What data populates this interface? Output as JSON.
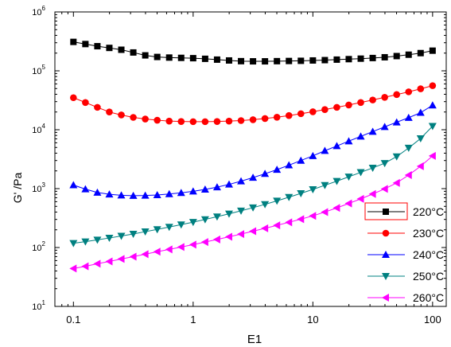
{
  "chart_data": {
    "type": "scatter",
    "xlabel": "E1",
    "ylabel": "G' /Pa",
    "x_scale": "log",
    "y_scale": "log",
    "xlim": [
      0.07,
      130
    ],
    "ylim": [
      10,
      1000000
    ],
    "x_ticks": [
      {
        "value": 0.1,
        "label": "0.1"
      },
      {
        "value": 1,
        "label": "1"
      },
      {
        "value": 10,
        "label": "10"
      },
      {
        "value": 100,
        "label": "100"
      }
    ],
    "y_ticks": [
      {
        "value": 10,
        "base": "10",
        "exp": "1"
      },
      {
        "value": 100,
        "base": "10",
        "exp": "2"
      },
      {
        "value": 1000,
        "base": "10",
        "exp": "3"
      },
      {
        "value": 10000,
        "base": "10",
        "exp": "4"
      },
      {
        "value": 100000,
        "base": "10",
        "exp": "5"
      },
      {
        "value": 1000000,
        "base": "10",
        "exp": "6"
      }
    ],
    "grid": false,
    "legend_position": "bottom-right",
    "x": [
      0.1,
      0.1259,
      0.1585,
      0.1995,
      0.2512,
      0.3162,
      0.3981,
      0.5012,
      0.631,
      0.7943,
      1,
      1.259,
      1.585,
      1.995,
      2.512,
      3.162,
      3.981,
      5.012,
      6.31,
      7.943,
      10,
      12.59,
      15.85,
      19.95,
      25.12,
      31.62,
      39.81,
      50.12,
      63.1,
      79.43,
      100
    ],
    "series": [
      {
        "name": "220°C",
        "color": "#000000",
        "marker": "square",
        "values": [
          310000,
          285000,
          262000,
          245000,
          228000,
          205000,
          183000,
          172000,
          168000,
          166000,
          164000,
          160000,
          155000,
          150000,
          146000,
          145000,
          145000,
          146000,
          147000,
          148000,
          150000,
          152000,
          155000,
          158000,
          161000,
          165000,
          170000,
          178000,
          188000,
          200000,
          220000
        ]
      },
      {
        "name": "230°C",
        "color": "#ff0000",
        "marker": "circle",
        "values": [
          35000,
          29000,
          24000,
          20000,
          17800,
          16200,
          15200,
          14500,
          14000,
          13800,
          13700,
          13700,
          13800,
          14000,
          14300,
          14800,
          15500,
          16300,
          17400,
          18700,
          20200,
          22000,
          24000,
          26300,
          29000,
          32000,
          35500,
          39500,
          44000,
          49500,
          56000
        ]
      },
      {
        "name": "240°C",
        "color": "#0000ff",
        "marker": "triangle-up",
        "values": [
          1150,
          980,
          860,
          800,
          770,
          760,
          765,
          780,
          810,
          850,
          900,
          970,
          1060,
          1180,
          1340,
          1540,
          1790,
          2100,
          2500,
          3000,
          3600,
          4400,
          5300,
          6400,
          7700,
          9300,
          11200,
          13400,
          16000,
          19500,
          26000
        ]
      },
      {
        "name": "250°C",
        "color": "#008080",
        "marker": "triangle-down",
        "values": [
          118,
          126,
          135,
          145,
          157,
          170,
          186,
          203,
          223,
          245,
          270,
          300,
          334,
          374,
          420,
          475,
          540,
          620,
          715,
          830,
          970,
          1140,
          1340,
          1590,
          1890,
          2250,
          2700,
          3500,
          4900,
          7100,
          11500
        ]
      },
      {
        "name": "260°C",
        "color": "#ff00ff",
        "marker": "triangle-left",
        "values": [
          44,
          48,
          53,
          58,
          64,
          70,
          77,
          85,
          93,
          102,
          112,
          124,
          137,
          152,
          169,
          189,
          212,
          238,
          268,
          303,
          345,
          400,
          470,
          560,
          670,
          810,
          990,
          1250,
          1700,
          2400,
          3600
        ]
      }
    ]
  }
}
